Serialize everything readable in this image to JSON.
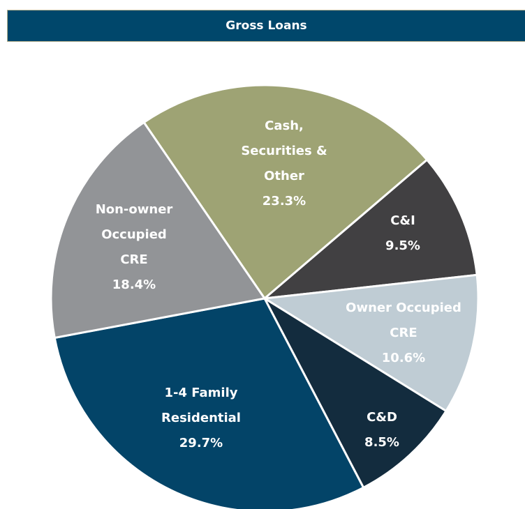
{
  "chart_data": {
    "type": "pie",
    "title": "Gross Loans",
    "categories": [
      "Cash,\nSecurities &\nOther",
      "C&I",
      "Owner Occupied\nCRE",
      "C&D",
      "1-4 Family\nResidential",
      "Non-owner\nOccupied\nCRE"
    ],
    "values": [
      23.3,
      9.5,
      10.6,
      8.5,
      29.7,
      18.4
    ],
    "value_labels": [
      "23.3%",
      "9.5%",
      "10.6%",
      "8.5%",
      "29.7%",
      "18.4%"
    ],
    "colors": [
      "#9ea374",
      "#414042",
      "#bfccd4",
      "#132c3e",
      "#034468",
      "#929497"
    ]
  }
}
